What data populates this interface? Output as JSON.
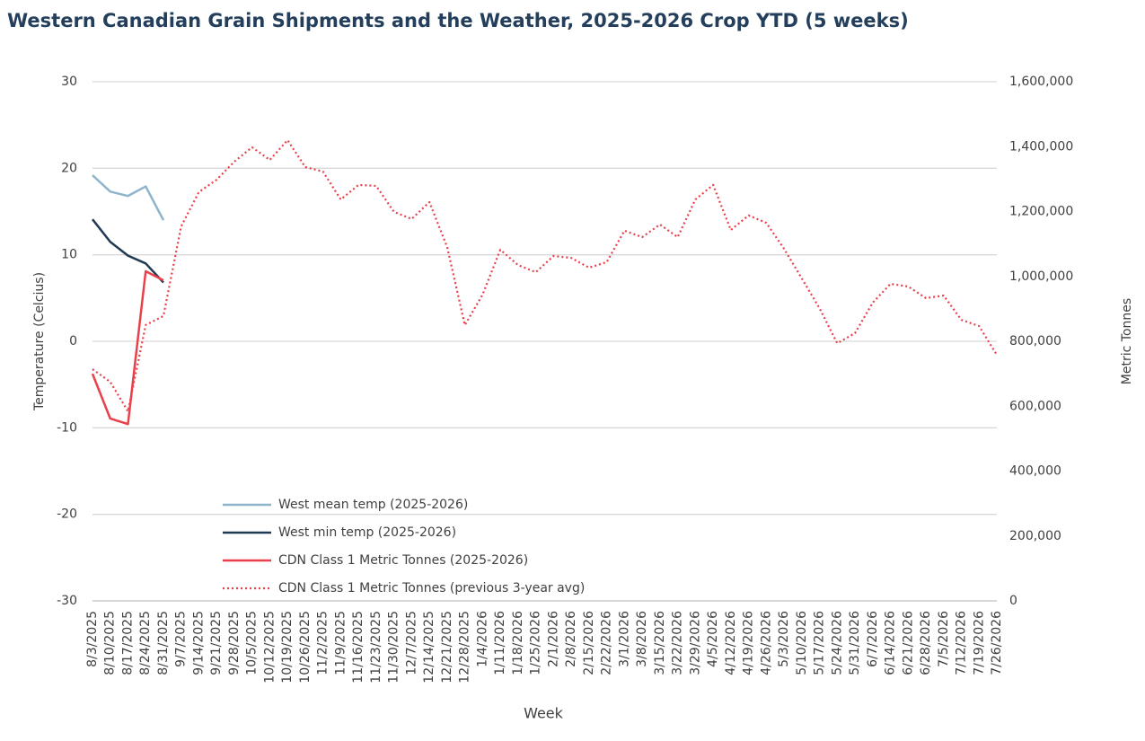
{
  "chart_data": {
    "type": "line",
    "title": "Western Canadian Grain Shipments and the Weather, 2025-2026 Crop YTD (5 weeks)",
    "x_label": "Week",
    "y_label": "Temperature (Celcius)",
    "y2_label": "Metric Tonnes",
    "categories": [
      "8/3/2025",
      "8/10/2025",
      "8/17/2025",
      "8/24/2025",
      "8/31/2025",
      "9/7/2025",
      "9/14/2025",
      "9/21/2025",
      "9/28/2025",
      "10/5/2025",
      "10/12/2025",
      "10/19/2025",
      "10/26/2025",
      "11/2/2025",
      "11/9/2025",
      "11/16/2025",
      "11/23/2025",
      "11/30/2025",
      "12/7/2025",
      "12/14/2025",
      "12/21/2025",
      "12/28/2025",
      "1/4/2026",
      "1/11/2026",
      "1/18/2026",
      "1/25/2026",
      "2/1/2026",
      "2/8/2026",
      "2/15/2026",
      "2/22/2026",
      "3/1/2026",
      "3/8/2026",
      "3/15/2026",
      "3/22/2026",
      "3/29/2026",
      "4/5/2026",
      "4/12/2026",
      "4/19/2026",
      "4/26/2026",
      "5/3/2026",
      "5/10/2026",
      "5/17/2026",
      "5/24/2026",
      "5/31/2026",
      "6/7/2026",
      "6/14/2026",
      "6/21/2026",
      "6/28/2026",
      "7/5/2026",
      "7/12/2026",
      "7/19/2026",
      "7/26/2026"
    ],
    "ylim": [
      -30,
      30
    ],
    "yticks": [
      -30,
      -20,
      -10,
      0,
      10,
      20,
      30
    ],
    "y2lim": [
      0,
      1600000
    ],
    "y2ticks": [
      0,
      {
        "value": 200000,
        "label": "200,000"
      },
      {
        "value": 400000,
        "label": "400,000"
      },
      {
        "value": 600000,
        "label": "600,000"
      },
      {
        "value": 800000,
        "label": "800,000"
      },
      {
        "value": 1000000,
        "label": "1,000,000"
      },
      {
        "value": 1200000,
        "label": "1,200,000"
      },
      {
        "value": 1400000,
        "label": "1,400,000"
      },
      {
        "value": 1600000,
        "label": "1,600,000"
      }
    ],
    "grid": true,
    "series": [
      {
        "name": "West mean temp (2025-2026)",
        "color": "#8fb4cb",
        "line_style": "solid",
        "values": [
          19.2,
          17.3,
          16.8,
          17.9,
          14.0,
          null,
          null,
          null,
          null,
          null,
          null,
          null,
          null,
          null,
          null,
          null,
          null,
          null,
          null,
          null,
          null,
          null,
          null,
          null,
          null,
          null,
          null,
          null,
          null,
          null,
          null,
          null,
          null,
          null,
          null,
          null,
          null,
          null,
          null,
          null,
          null,
          null,
          null,
          null,
          null,
          null,
          null,
          null,
          null,
          null,
          null,
          null
        ]
      },
      {
        "name": "West min temp (2025-2026)",
        "color": "#1f3a52",
        "line_style": "solid",
        "values": [
          14.1,
          11.5,
          9.9,
          9.0,
          6.8,
          null,
          null,
          null,
          null,
          null,
          null,
          null,
          null,
          null,
          null,
          null,
          null,
          null,
          null,
          null,
          null,
          null,
          null,
          null,
          null,
          null,
          null,
          null,
          null,
          null,
          null,
          null,
          null,
          null,
          null,
          null,
          null,
          null,
          null,
          null,
          null,
          null,
          null,
          null,
          null,
          null,
          null,
          null,
          null,
          null,
          null,
          null
        ]
      },
      {
        "name": "CDN Class 1 Metric Tonnes (2025-2026)",
        "color": "#e8414b",
        "line_style": "solid",
        "axis": "y2",
        "values": [
          700000,
          562000,
          545000,
          1016000,
          988000,
          null,
          null,
          null,
          null,
          null,
          null,
          null,
          null,
          null,
          null,
          null,
          null,
          null,
          null,
          null,
          null,
          null,
          null,
          null,
          null,
          null,
          null,
          null,
          null,
          null,
          null,
          null,
          null,
          null,
          null,
          null,
          null,
          null,
          null,
          null,
          null,
          null,
          null,
          null,
          null,
          null,
          null,
          null,
          null,
          null,
          null,
          null
        ]
      },
      {
        "name": "CDN Class 1 Metric Tonnes (previous 3-year avg)",
        "color": "#e8414b",
        "line_style": "dotted",
        "axis": "y2",
        "values": [
          714000,
          675000,
          584000,
          850000,
          878000,
          1154000,
          1260000,
          1298000,
          1354000,
          1398000,
          1359000,
          1420000,
          1337000,
          1323000,
          1237000,
          1282000,
          1279000,
          1199000,
          1177000,
          1229000,
          1091000,
          850000,
          944000,
          1082000,
          1035000,
          1013000,
          1063000,
          1057000,
          1027000,
          1044000,
          1141000,
          1121000,
          1160000,
          1121000,
          1237000,
          1282000,
          1143000,
          1188000,
          1165000,
          1085000,
          994000,
          902000,
          794000,
          825000,
          919000,
          977000,
          969000,
          933000,
          941000,
          866000,
          847000,
          758000
        ]
      }
    ]
  }
}
